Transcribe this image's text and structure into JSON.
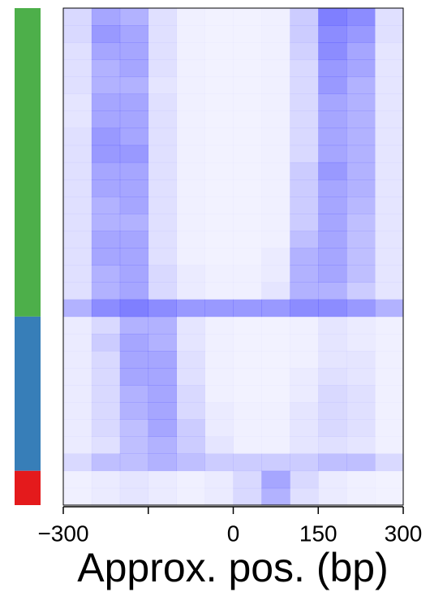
{
  "chart_data": {
    "type": "heatmap",
    "xlabel": "Approx. pos. (bp)",
    "xlim": [
      -300,
      300
    ],
    "xticks": [
      {
        "value": -300,
        "label": "−300"
      },
      {
        "value": -150,
        "label": null
      },
      0,
      150,
      300
    ],
    "bins": [
      -300,
      -250,
      -200,
      -150,
      -100,
      -50,
      0,
      50,
      100,
      150,
      200,
      250,
      300
    ],
    "color": "#0000ff",
    "groups": [
      {
        "color": "#4daf4a",
        "rows": 18
      },
      {
        "color": "#377eb8",
        "rows": 9
      },
      {
        "color": "#e41a1c",
        "rows": 2
      }
    ],
    "values": [
      [
        0.15,
        0.35,
        0.3,
        0.12,
        0.06,
        0.05,
        0.05,
        0.06,
        0.2,
        0.5,
        0.45,
        0.12
      ],
      [
        0.15,
        0.4,
        0.35,
        0.12,
        0.06,
        0.05,
        0.05,
        0.06,
        0.2,
        0.45,
        0.4,
        0.12
      ],
      [
        0.12,
        0.35,
        0.35,
        0.12,
        0.06,
        0.05,
        0.05,
        0.06,
        0.18,
        0.45,
        0.35,
        0.1
      ],
      [
        0.12,
        0.3,
        0.35,
        0.12,
        0.06,
        0.05,
        0.05,
        0.06,
        0.15,
        0.4,
        0.35,
        0.1
      ],
      [
        0.12,
        0.3,
        0.3,
        0.1,
        0.06,
        0.05,
        0.05,
        0.06,
        0.15,
        0.4,
        0.3,
        0.1
      ],
      [
        0.1,
        0.35,
        0.35,
        0.12,
        0.06,
        0.05,
        0.05,
        0.06,
        0.15,
        0.35,
        0.3,
        0.1
      ],
      [
        0.1,
        0.35,
        0.35,
        0.12,
        0.06,
        0.05,
        0.05,
        0.06,
        0.15,
        0.35,
        0.3,
        0.1
      ],
      [
        0.12,
        0.4,
        0.35,
        0.12,
        0.06,
        0.05,
        0.05,
        0.06,
        0.15,
        0.35,
        0.3,
        0.1
      ],
      [
        0.12,
        0.4,
        0.4,
        0.12,
        0.06,
        0.05,
        0.05,
        0.06,
        0.15,
        0.35,
        0.3,
        0.1
      ],
      [
        0.12,
        0.35,
        0.35,
        0.12,
        0.06,
        0.05,
        0.05,
        0.06,
        0.2,
        0.4,
        0.3,
        0.1
      ],
      [
        0.12,
        0.35,
        0.35,
        0.12,
        0.06,
        0.05,
        0.05,
        0.06,
        0.2,
        0.35,
        0.3,
        0.1
      ],
      [
        0.12,
        0.3,
        0.35,
        0.12,
        0.06,
        0.05,
        0.05,
        0.06,
        0.2,
        0.35,
        0.28,
        0.1
      ],
      [
        0.12,
        0.3,
        0.3,
        0.12,
        0.06,
        0.05,
        0.05,
        0.06,
        0.2,
        0.35,
        0.25,
        0.1
      ],
      [
        0.12,
        0.35,
        0.35,
        0.12,
        0.06,
        0.05,
        0.05,
        0.06,
        0.25,
        0.35,
        0.25,
        0.1
      ],
      [
        0.12,
        0.35,
        0.35,
        0.12,
        0.06,
        0.05,
        0.05,
        0.08,
        0.3,
        0.35,
        0.25,
        0.1
      ],
      [
        0.12,
        0.3,
        0.35,
        0.15,
        0.08,
        0.06,
        0.06,
        0.08,
        0.3,
        0.35,
        0.25,
        0.1
      ],
      [
        0.12,
        0.3,
        0.35,
        0.15,
        0.08,
        0.06,
        0.06,
        0.1,
        0.3,
        0.3,
        0.2,
        0.1
      ],
      [
        0.3,
        0.45,
        0.5,
        0.45,
        0.4,
        0.4,
        0.4,
        0.4,
        0.45,
        0.45,
        0.4,
        0.3
      ],
      [
        0.08,
        0.15,
        0.3,
        0.3,
        0.1,
        0.06,
        0.05,
        0.05,
        0.06,
        0.1,
        0.08,
        0.06
      ],
      [
        0.08,
        0.2,
        0.35,
        0.3,
        0.1,
        0.06,
        0.05,
        0.05,
        0.06,
        0.1,
        0.08,
        0.06
      ],
      [
        0.08,
        0.15,
        0.35,
        0.35,
        0.12,
        0.06,
        0.05,
        0.05,
        0.06,
        0.1,
        0.1,
        0.06
      ],
      [
        0.08,
        0.15,
        0.35,
        0.35,
        0.12,
        0.06,
        0.05,
        0.05,
        0.08,
        0.12,
        0.1,
        0.06
      ],
      [
        0.08,
        0.15,
        0.3,
        0.35,
        0.15,
        0.06,
        0.05,
        0.05,
        0.08,
        0.15,
        0.12,
        0.06
      ],
      [
        0.08,
        0.15,
        0.3,
        0.35,
        0.15,
        0.08,
        0.06,
        0.06,
        0.1,
        0.15,
        0.12,
        0.06
      ],
      [
        0.08,
        0.15,
        0.25,
        0.35,
        0.2,
        0.08,
        0.06,
        0.06,
        0.1,
        0.15,
        0.12,
        0.06
      ],
      [
        0.08,
        0.12,
        0.25,
        0.3,
        0.2,
        0.1,
        0.06,
        0.06,
        0.1,
        0.12,
        0.1,
        0.06
      ],
      [
        0.15,
        0.25,
        0.25,
        0.3,
        0.25,
        0.2,
        0.2,
        0.2,
        0.2,
        0.25,
        0.25,
        0.15
      ],
      [
        0.06,
        0.08,
        0.1,
        0.08,
        0.06,
        0.08,
        0.15,
        0.35,
        0.15,
        0.08,
        0.06,
        0.05
      ],
      [
        0.06,
        0.08,
        0.1,
        0.08,
        0.06,
        0.08,
        0.15,
        0.3,
        0.12,
        0.08,
        0.06,
        0.05
      ]
    ]
  }
}
